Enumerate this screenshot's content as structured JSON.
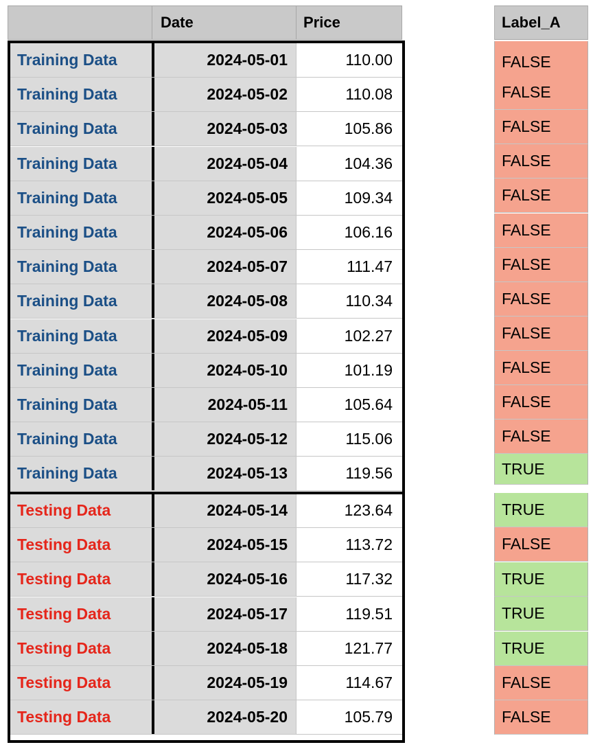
{
  "main_table": {
    "headers": {
      "split": "",
      "date": "Date",
      "price": "Price"
    },
    "rows": [
      {
        "split": "Training Data",
        "date": "2024-05-01",
        "price": "110.00"
      },
      {
        "split": "Training Data",
        "date": "2024-05-02",
        "price": "110.08"
      },
      {
        "split": "Training Data",
        "date": "2024-05-03",
        "price": "105.86"
      },
      {
        "split": "Training Data",
        "date": "2024-05-04",
        "price": "104.36"
      },
      {
        "split": "Training Data",
        "date": "2024-05-05",
        "price": "109.34"
      },
      {
        "split": "Training Data",
        "date": "2024-05-06",
        "price": "106.16"
      },
      {
        "split": "Training Data",
        "date": "2024-05-07",
        "price": "111.47"
      },
      {
        "split": "Training Data",
        "date": "2024-05-08",
        "price": "110.34"
      },
      {
        "split": "Training Data",
        "date": "2024-05-09",
        "price": "102.27"
      },
      {
        "split": "Training Data",
        "date": "2024-05-10",
        "price": "101.19"
      },
      {
        "split": "Training Data",
        "date": "2024-05-11",
        "price": "105.64"
      },
      {
        "split": "Training Data",
        "date": "2024-05-12",
        "price": "115.06"
      },
      {
        "split": "Training Data",
        "date": "2024-05-13",
        "price": "119.56"
      },
      {
        "split": "Testing Data",
        "date": "2024-05-14",
        "price": "123.64"
      },
      {
        "split": "Testing Data",
        "date": "2024-05-15",
        "price": "113.72"
      },
      {
        "split": "Testing Data",
        "date": "2024-05-16",
        "price": "117.32"
      },
      {
        "split": "Testing Data",
        "date": "2024-05-17",
        "price": "119.51"
      },
      {
        "split": "Testing Data",
        "date": "2024-05-18",
        "price": "121.77"
      },
      {
        "split": "Testing Data",
        "date": "2024-05-19",
        "price": "114.67"
      },
      {
        "split": "Testing Data",
        "date": "2024-05-20",
        "price": "105.79"
      }
    ]
  },
  "label_table": {
    "header": "Label_A",
    "values": [
      "FALSE",
      "FALSE",
      "FALSE",
      "FALSE",
      "FALSE",
      "FALSE",
      "FALSE",
      "FALSE",
      "FALSE",
      "FALSE",
      "FALSE",
      "FALSE",
      "TRUE",
      "TRUE",
      "FALSE",
      "TRUE",
      "TRUE",
      "TRUE",
      "FALSE",
      "FALSE"
    ]
  },
  "colors": {
    "training_text": "#1b4f86",
    "testing_text": "#e5261b",
    "true_fill": "#b7e49b",
    "false_fill": "#f5a38e",
    "header_fill": "#c9c9c9",
    "key_column_fill": "#dbdbdb"
  }
}
